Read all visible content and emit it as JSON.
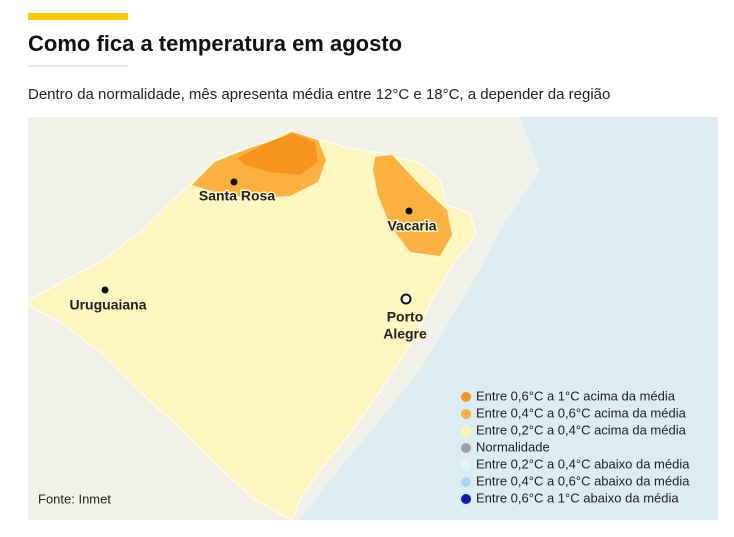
{
  "header": {
    "title": "Como fica a temperatura em agosto",
    "subtitle": "Dentro da normalidade, mês apresenta média entre 12°C e 18°C, a depender da região"
  },
  "map": {
    "cities": [
      {
        "lines": [
          "Santa Rosa"
        ]
      },
      {
        "lines": [
          "Vacaria"
        ]
      },
      {
        "lines": [
          "Uruguaiana"
        ]
      },
      {
        "lines": [
          "Porto",
          "Alegre"
        ]
      }
    ]
  },
  "legend": [
    {
      "label": "Entre 0,6°C a 1°C acima da média",
      "color": "#f7941d"
    },
    {
      "label": "Entre 0,4°C a 0,6°C acima da média",
      "color": "#fbb040"
    },
    {
      "label": "Entre 0,2°C a 0,4°C acima da média",
      "color": "#fdf6a8"
    },
    {
      "label": "Normalidade",
      "color": "#a0a0a0"
    },
    {
      "label": "Entre 0,2°C a 0,4°C abaixo da média",
      "color": "#e0f7fa"
    },
    {
      "label": "Entre 0,4°C a 0,6°C abaixo da média",
      "color": "#a6d8f0"
    },
    {
      "label": "Entre 0,6°C a 1°C abaixo da média",
      "color": "#0a1ab0"
    }
  ],
  "source": "Fonte: Inmet"
}
